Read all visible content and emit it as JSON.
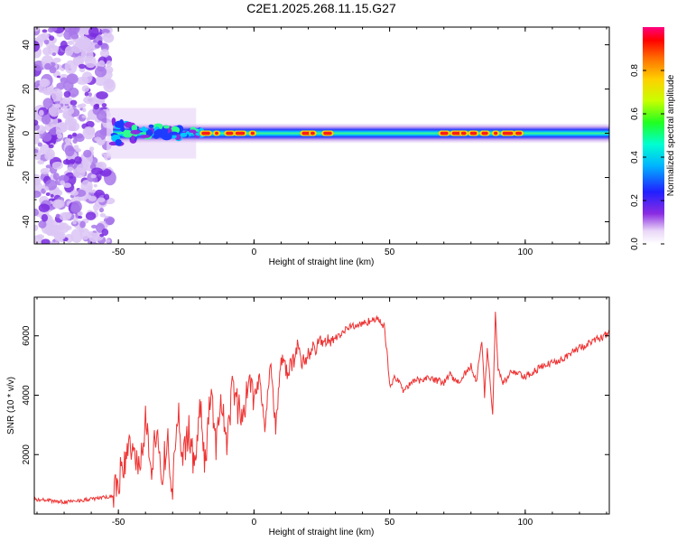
{
  "figure_title": "C2E1.2025.268.11.15.G27",
  "chart_data": [
    {
      "type": "heatmap",
      "title": "C2E1.2025.268.11.15.G27",
      "xlabel": "Height of straight line (km)",
      "ylabel": "Frequency (Hz)",
      "xlim": [
        -81,
        131
      ],
      "ylim": [
        -50,
        48
      ],
      "xticks": [
        -50,
        0,
        50,
        100
      ],
      "xtick_labels": [
        "-50",
        "0",
        "50",
        "100"
      ],
      "yticks": [
        -40,
        -20,
        0,
        20,
        40
      ],
      "ytick_labels": [
        "-40",
        "-20",
        "0",
        "20",
        "40"
      ],
      "colorbar": {
        "label": "Normalized spectral amplitude",
        "range": [
          0,
          1
        ],
        "ticks": [
          0.0,
          0.2,
          0.4,
          0.6,
          0.8
        ],
        "tick_labels": [
          "0.0",
          "0.2",
          "0.4",
          "0.6",
          "0.8"
        ],
        "colormap": "rainbow"
      },
      "description_points": {
        "noise_region_x": [
          -81,
          -53
        ],
        "band_center_hz": 0,
        "high_amplitude_segments_km": [
          [
            -20,
            0
          ],
          [
            17,
            27
          ],
          [
            68,
            100
          ]
        ]
      }
    },
    {
      "type": "line",
      "xlabel": "Height of straight line (km)",
      "ylabel": "SNR (10 * v/v)",
      "xlim": [
        -81,
        131
      ],
      "ylim": [
        0,
        7300
      ],
      "xticks": [
        -50,
        0,
        50,
        100
      ],
      "xtick_labels": [
        "-50",
        "0",
        "50",
        "100"
      ],
      "yticks": [
        2000,
        4000,
        6000
      ],
      "ytick_labels": [
        "2000",
        "4000",
        "6000"
      ],
      "line_color": "#ee3333",
      "series": [
        {
          "name": "SNR",
          "x": [
            -81,
            -70,
            -60,
            -52,
            -50,
            -48,
            -45,
            -42,
            -40,
            -38,
            -36,
            -34,
            -32,
            -30,
            -28,
            -26,
            -24,
            -22,
            -20,
            -18,
            -16,
            -14,
            -12,
            -10,
            -8,
            -6,
            -4,
            -2,
            0,
            2,
            4,
            6,
            8,
            10,
            12,
            14,
            16,
            18,
            20,
            25,
            30,
            35,
            40,
            45,
            47,
            48,
            49,
            50,
            52,
            55,
            60,
            65,
            70,
            72,
            75,
            80,
            82,
            84,
            85,
            86,
            87,
            88,
            89,
            90,
            92,
            95,
            100,
            105,
            110,
            115,
            120,
            125,
            131
          ],
          "values": [
            500,
            400,
            500,
            600,
            1100,
            1700,
            2400,
            1400,
            3200,
            1600,
            2800,
            1200,
            2600,
            900,
            3400,
            1800,
            3000,
            1500,
            3700,
            1700,
            4100,
            2400,
            3800,
            2000,
            4400,
            3600,
            3100,
            4700,
            4000,
            4600,
            3000,
            5100,
            2900,
            5200,
            4800,
            5000,
            5600,
            5100,
            5400,
            5800,
            5900,
            6300,
            6400,
            6600,
            6400,
            6300,
            5500,
            4300,
            4600,
            4200,
            4500,
            4600,
            4400,
            4700,
            4400,
            5000,
            4500,
            5800,
            4000,
            5500,
            4600,
            3300,
            6800,
            4800,
            4400,
            4800,
            4600,
            4900,
            5100,
            5300,
            5600,
            5800,
            6100
          ]
        }
      ]
    }
  ]
}
